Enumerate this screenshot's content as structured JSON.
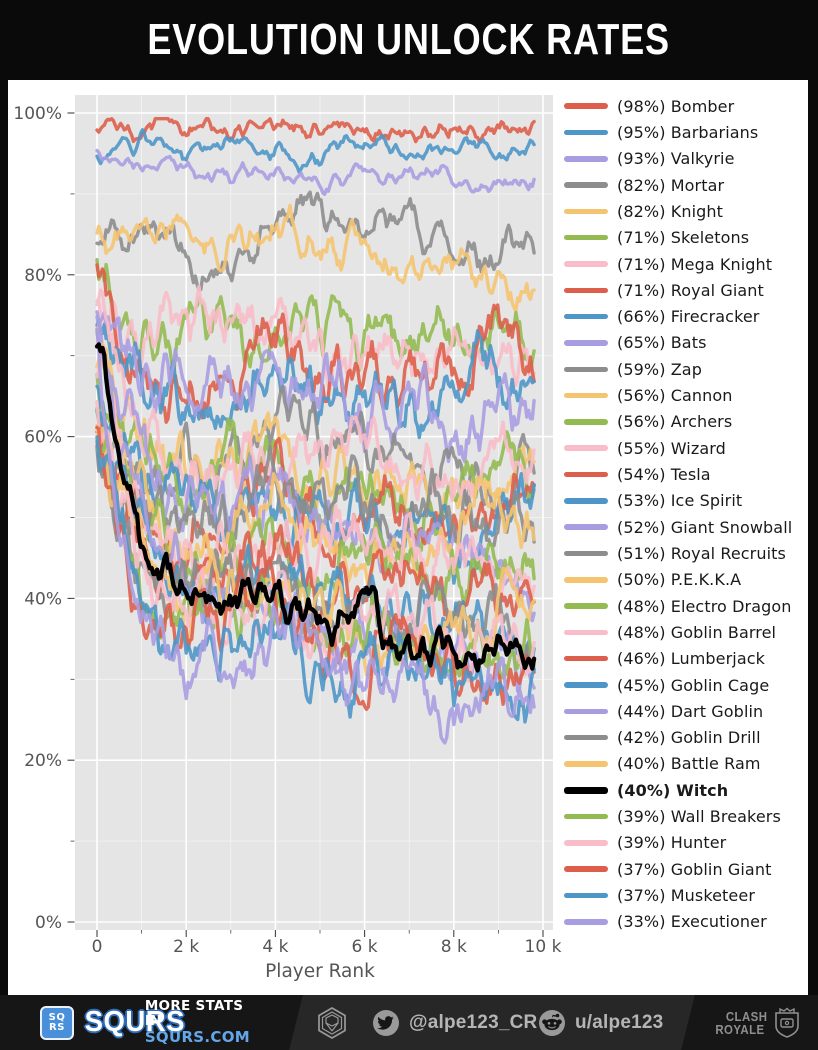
{
  "title": "EVOLUTION UNLOCK RATES",
  "chart_data": {
    "type": "line",
    "title": "EVOLUTION UNLOCK RATES",
    "xlabel": "Player Rank",
    "ylabel": "",
    "xlim": [
      0,
      10000
    ],
    "ylim": [
      0,
      100
    ],
    "grid": true,
    "legend_position": "right",
    "x_tick_labels": [
      "0",
      "2 k",
      "4 k",
      "6 k",
      "8 k",
      "10 k"
    ],
    "x_tick_values": [
      0,
      2000,
      4000,
      6000,
      8000,
      10000
    ],
    "y_tick_labels": [
      "0%",
      "20%",
      "40%",
      "60%",
      "80%",
      "100%"
    ],
    "y_tick_values": [
      0,
      20,
      40,
      60,
      80,
      100
    ],
    "palette": {
      "red": "#dd5f4b",
      "blue": "#4e96c8",
      "purple": "#a79de1",
      "gray": "#8d8d8d",
      "yellow": "#f4c471",
      "green": "#94ba52",
      "pink": "#f8bdc8",
      "black": "#000000"
    },
    "anchor_x": [
      0,
      500,
      1000,
      1500,
      2000,
      3000,
      4000,
      5000,
      6000,
      7000,
      8000,
      9000,
      9800
    ],
    "series": [
      {
        "name": "Bomber",
        "pct": 98,
        "color": "red",
        "values": [
          98,
          98,
          98,
          98.5,
          98,
          98,
          98,
          97.5,
          98,
          97.5,
          99,
          98,
          98
        ]
      },
      {
        "name": "Barbarians",
        "pct": 95,
        "color": "blue",
        "values": [
          94.5,
          96,
          96.5,
          95,
          93.5,
          96,
          95.5,
          94,
          96.5,
          94.5,
          95.5,
          94.5,
          95.5
        ]
      },
      {
        "name": "Valkyrie",
        "pct": 93,
        "color": "purple",
        "values": [
          95,
          94.5,
          93.5,
          94,
          93,
          92.5,
          93.5,
          92.5,
          91.5,
          92.5,
          93,
          92,
          92
        ]
      },
      {
        "name": "Mortar",
        "pct": 82,
        "color": "gray",
        "values": [
          83,
          84,
          86.5,
          84.5,
          82.5,
          81,
          86,
          87,
          84.5,
          86,
          84,
          81.5,
          84.5
        ]
      },
      {
        "name": "Knight",
        "pct": 82,
        "color": "yellow",
        "values": [
          84,
          85.5,
          84.5,
          85,
          86,
          84.5,
          85.5,
          83.5,
          82,
          81,
          80.5,
          76.5,
          79
        ]
      },
      {
        "name": "Skeletons",
        "pct": 71,
        "color": "green",
        "values": [
          82,
          77,
          75.5,
          74,
          73.5,
          72,
          74.5,
          71.5,
          70,
          72,
          70.5,
          74,
          70.5
        ]
      },
      {
        "name": "Mega Knight",
        "pct": 71,
        "color": "pink",
        "values": [
          76,
          74.5,
          73,
          72.5,
          71.5,
          73,
          75,
          70.5,
          69,
          71,
          72,
          69.5,
          68.5
        ]
      },
      {
        "name": "Royal Giant",
        "pct": 71,
        "color": "red",
        "values": [
          82,
          72,
          68,
          66.5,
          65,
          70,
          73,
          68,
          66,
          70,
          67,
          72.5,
          68
        ]
      },
      {
        "name": "Firecracker",
        "pct": 66,
        "color": "blue",
        "values": [
          75,
          70,
          68,
          67,
          66,
          64.5,
          68,
          64,
          66.5,
          63,
          66,
          69,
          67.5
        ]
      },
      {
        "name": "Bats",
        "pct": 65,
        "color": "purple",
        "values": [
          74,
          71,
          69,
          67.5,
          66,
          65,
          67,
          64,
          62,
          63.5,
          61,
          63,
          62
        ]
      },
      {
        "name": "Zap",
        "pct": 59,
        "color": "gray",
        "values": [
          60,
          58.5,
          57,
          56,
          55.5,
          57,
          60,
          58,
          55,
          57.5,
          56,
          53.5,
          55
        ]
      },
      {
        "name": "Cannon",
        "pct": 56,
        "color": "yellow",
        "values": [
          72,
          63,
          58.5,
          56,
          54.5,
          56,
          57.5,
          54,
          52.5,
          53,
          51.5,
          54,
          55.5
        ]
      },
      {
        "name": "Archers",
        "pct": 56,
        "color": "green",
        "values": [
          65,
          60,
          57,
          55.5,
          54,
          56,
          55,
          52.5,
          54,
          50.5,
          52,
          54,
          53
        ]
      },
      {
        "name": "Wizard",
        "pct": 55,
        "color": "pink",
        "values": [
          76,
          66,
          60.5,
          57.5,
          55.5,
          57,
          60,
          58,
          56,
          57,
          55,
          60,
          57
        ]
      },
      {
        "name": "Tesla",
        "pct": 54,
        "color": "red",
        "values": [
          60,
          55.5,
          52.5,
          50.5,
          49,
          52,
          55,
          50,
          48,
          52,
          50,
          53,
          50
        ]
      },
      {
        "name": "Ice Spirit",
        "pct": 53,
        "color": "blue",
        "values": [
          65,
          58,
          54.5,
          52,
          50.5,
          52,
          54,
          50,
          48.5,
          50,
          46.5,
          48,
          47
        ]
      },
      {
        "name": "Giant Snowball",
        "pct": 52,
        "color": "purple",
        "values": [
          73,
          62,
          56,
          52.5,
          50,
          52,
          54,
          50.5,
          48,
          50,
          46,
          44.5,
          43.5
        ]
      },
      {
        "name": "Royal Recruits",
        "pct": 51,
        "color": "gray",
        "values": [
          60,
          55,
          52.5,
          50,
          48.5,
          50,
          54,
          52,
          50,
          53,
          50.5,
          52,
          48.5
        ]
      },
      {
        "name": "P.E.K.K.A",
        "pct": 50,
        "color": "yellow",
        "values": [
          70,
          58.5,
          52.5,
          48.5,
          46,
          48,
          50,
          46.5,
          44.5,
          48,
          46,
          50,
          44.5
        ]
      },
      {
        "name": "Electro Dragon",
        "pct": 48,
        "color": "green",
        "values": [
          66,
          56,
          50,
          46.5,
          44.5,
          46,
          48,
          44.5,
          46,
          44,
          42,
          46,
          44
        ]
      },
      {
        "name": "Goblin Barrel",
        "pct": 48,
        "color": "pink",
        "values": [
          70,
          58,
          50.5,
          46.5,
          44.5,
          46,
          48,
          46,
          44,
          46,
          42.5,
          44,
          42
        ]
      },
      {
        "name": "Lumberjack",
        "pct": 46,
        "color": "red",
        "values": [
          60,
          52,
          46.5,
          43.5,
          41.5,
          44,
          46,
          42,
          40,
          42.5,
          38.5,
          42,
          38
        ]
      },
      {
        "name": "Goblin Cage",
        "pct": 45,
        "color": "blue",
        "values": [
          64,
          54,
          47.5,
          43.5,
          41.5,
          42.5,
          45,
          41.5,
          39,
          40,
          36.5,
          38,
          36
        ]
      },
      {
        "name": "Dart Goblin",
        "pct": 44,
        "color": "purple",
        "values": [
          72,
          58,
          48.5,
          43,
          39,
          37.5,
          41,
          37,
          33.5,
          36.5,
          31,
          34.5,
          29.5
        ]
      },
      {
        "name": "Goblin Drill",
        "pct": 42,
        "color": "gray",
        "values": [
          58,
          50,
          44.5,
          41.5,
          39.5,
          40.5,
          42,
          38.5,
          36.5,
          38,
          34.5,
          36,
          34.5
        ]
      },
      {
        "name": "Battle Ram",
        "pct": 40,
        "color": "yellow",
        "values": [
          62,
          52,
          44.5,
          40.5,
          38.5,
          39.5,
          40.5,
          37.5,
          35.5,
          36.5,
          34.5,
          38,
          39
        ]
      },
      {
        "name": "Witch",
        "pct": 40,
        "color": "black",
        "bold": true,
        "values": [
          71,
          60.5,
          49,
          44,
          40.5,
          38.5,
          40.5,
          37.5,
          38.5,
          34.5,
          33,
          34.5,
          31.5
        ]
      },
      {
        "name": "Wall Breakers",
        "pct": 39,
        "color": "green",
        "values": [
          60,
          50,
          42.5,
          38.5,
          36.5,
          38,
          40,
          36.5,
          34.5,
          35.5,
          32.5,
          34,
          33
        ]
      },
      {
        "name": "Hunter",
        "pct": 39,
        "color": "pink",
        "values": [
          64,
          52,
          44.5,
          39.5,
          37.5,
          38.5,
          40,
          36.5,
          34.5,
          36,
          32.5,
          34,
          32
        ]
      },
      {
        "name": "Goblin Giant",
        "pct": 37,
        "color": "red",
        "values": [
          58,
          48,
          40.5,
          36.5,
          34.5,
          36.5,
          38,
          34.5,
          32.5,
          34,
          30.5,
          34,
          32
        ]
      },
      {
        "name": "Musketeer",
        "pct": 37,
        "color": "blue",
        "values": [
          62,
          50,
          42.5,
          37.5,
          35.5,
          36.5,
          38,
          34.5,
          32.5,
          33.5,
          29.5,
          31,
          29
        ]
      },
      {
        "name": "Executioner",
        "pct": 33,
        "color": "purple",
        "values": [
          70,
          52,
          41,
          35,
          32.5,
          33.5,
          36,
          30.5,
          28,
          30.5,
          25,
          28,
          25.5
        ]
      }
    ]
  },
  "footer": {
    "brand": {
      "badge_top": "SQ",
      "badge_bottom": "RS",
      "wordmark": "SQURS",
      "tagline_line1": "MORE STATS IN",
      "tagline_line2": "SQURS.COM"
    },
    "social": {
      "twitter_handle": "@alpe123_CR",
      "reddit_handle": "u/alpe123"
    },
    "game_logo": {
      "line1": "CLASH",
      "line2": "ROYALE"
    }
  },
  "colors": {
    "accent_blue": "#4a8fd9",
    "link_blue": "#63a7ea",
    "footer_text": "#b5b5b5",
    "icon_gray": "#9a9a9a",
    "plot_bg": "#e5e5e5",
    "tick_text": "#555555"
  }
}
